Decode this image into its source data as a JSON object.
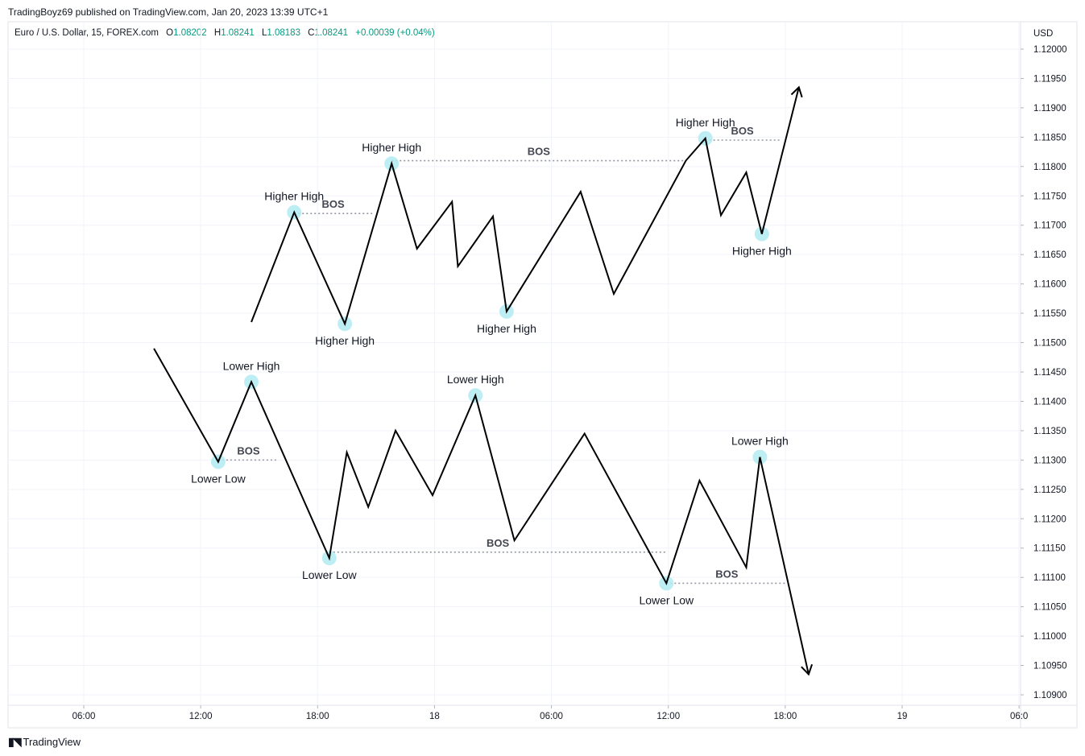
{
  "header": {
    "publisher_line": "TradingBoyz69 published on TradingView.com, Jan 20, 2023 13:39 UTC+1",
    "symbol": "Euro / U.S. Dollar, 15, FOREX.com",
    "open_label": "O",
    "open": "1.08202",
    "high_label": "H",
    "high": "1.08241",
    "low_label": "L",
    "low": "1.08183",
    "close_label": "C",
    "close": "1.08241",
    "change": "+0.00039 (+0.04%)"
  },
  "footer": {
    "brand": "TradingView",
    "icon": "tradingview-logo-icon"
  },
  "colors": {
    "line": "#000000",
    "marker": "#b2ebf2",
    "dotted": "#9598a1",
    "grid": "#f0f3fa",
    "change": "#089981"
  },
  "chart_data": {
    "type": "line",
    "y_unit": "USD",
    "ylim": [
      1.10885,
      1.12025
    ],
    "y_ticks": [
      "1.12000",
      "1.11950",
      "1.11900",
      "1.11850",
      "1.11800",
      "1.11750",
      "1.11700",
      "1.11650",
      "1.11600",
      "1.11550",
      "1.11500",
      "1.11450",
      "1.11400",
      "1.11350",
      "1.11300",
      "1.11250",
      "1.11200",
      "1.11150",
      "1.11100",
      "1.11050",
      "1.11000",
      "1.10950",
      "1.10900"
    ],
    "x_ticks": [
      {
        "label": "06:00",
        "t": 6
      },
      {
        "label": "12:00",
        "t": 12
      },
      {
        "label": "18:00",
        "t": 18
      },
      {
        "label": "18",
        "t": 24
      },
      {
        "label": "06:00",
        "t": 30
      },
      {
        "label": "12:00",
        "t": 36
      },
      {
        "label": "18:00",
        "t": 42
      },
      {
        "label": "19",
        "t": 48
      },
      {
        "label": "06:0",
        "t": 54
      }
    ],
    "grid": true,
    "series": [
      {
        "points": [
          [
            14.6,
            1.11535
          ],
          [
            16.8,
            1.11722
          ],
          [
            19.4,
            1.11532
          ],
          [
            21.8,
            1.11805
          ],
          [
            23.1,
            1.1166
          ],
          [
            24.9,
            1.1174
          ],
          [
            25.2,
            1.1163
          ],
          [
            27.0,
            1.11715
          ],
          [
            27.7,
            1.11553
          ],
          [
            31.5,
            1.11757
          ],
          [
            33.2,
            1.11583
          ],
          [
            36.9,
            1.1181
          ],
          [
            37.9,
            1.11848
          ],
          [
            38.7,
            1.11717
          ],
          [
            40.0,
            1.1179
          ],
          [
            40.8,
            1.11685
          ],
          [
            42.7,
            1.11935
          ]
        ],
        "arrow": "end"
      },
      {
        "points": [
          [
            9.6,
            1.1149
          ],
          [
            12.9,
            1.11297
          ],
          [
            14.6,
            1.11433
          ],
          [
            18.6,
            1.11133
          ],
          [
            19.5,
            1.11313
          ],
          [
            20.6,
            1.1122
          ],
          [
            22.0,
            1.1135
          ],
          [
            23.9,
            1.1124
          ],
          [
            26.1,
            1.1141
          ],
          [
            28.1,
            1.11163
          ],
          [
            31.7,
            1.11345
          ],
          [
            35.9,
            1.1109
          ],
          [
            37.6,
            1.11265
          ],
          [
            40.0,
            1.11117
          ],
          [
            40.7,
            1.11305
          ],
          [
            43.2,
            1.10935
          ]
        ],
        "arrow": "end"
      }
    ],
    "annotations": [
      {
        "text": "Higher High",
        "t": 16.8,
        "y": 1.11722,
        "pos": "above"
      },
      {
        "text": "Higher High",
        "t": 19.4,
        "y": 1.11532,
        "pos": "below"
      },
      {
        "text": "Higher High",
        "t": 21.8,
        "y": 1.11805,
        "pos": "above"
      },
      {
        "text": "Higher High",
        "t": 27.7,
        "y": 1.11553,
        "pos": "below"
      },
      {
        "text": "Higher High",
        "t": 37.9,
        "y": 1.11848,
        "pos": "above"
      },
      {
        "text": "Higher High",
        "t": 40.8,
        "y": 1.11685,
        "pos": "below"
      },
      {
        "text": "Lower High",
        "t": 14.6,
        "y": 1.11433,
        "pos": "above"
      },
      {
        "text": "Lower Low",
        "t": 12.9,
        "y": 1.11297,
        "pos": "below"
      },
      {
        "text": "Lower Low",
        "t": 18.6,
        "y": 1.11133,
        "pos": "below"
      },
      {
        "text": "Lower High",
        "t": 26.1,
        "y": 1.1141,
        "pos": "above"
      },
      {
        "text": "Lower Low",
        "t": 35.9,
        "y": 1.1109,
        "pos": "below"
      },
      {
        "text": "Lower High",
        "t": 40.7,
        "y": 1.11305,
        "pos": "above"
      }
    ],
    "bos_lines": [
      {
        "label": "BOS",
        "t1": 16.8,
        "t2": 20.8,
        "y": 1.1172
      },
      {
        "label": "BOS",
        "t1": 21.8,
        "t2": 36.9,
        "y": 1.1181
      },
      {
        "label": "BOS",
        "t1": 37.9,
        "t2": 41.7,
        "y": 1.11845
      },
      {
        "label": "BOS",
        "t1": 12.9,
        "t2": 16.0,
        "y": 1.113
      },
      {
        "label": "BOS",
        "t1": 18.6,
        "t2": 35.9,
        "y": 1.11143
      },
      {
        "label": "BOS",
        "t1": 35.9,
        "t2": 42.1,
        "y": 1.1109
      }
    ]
  }
}
